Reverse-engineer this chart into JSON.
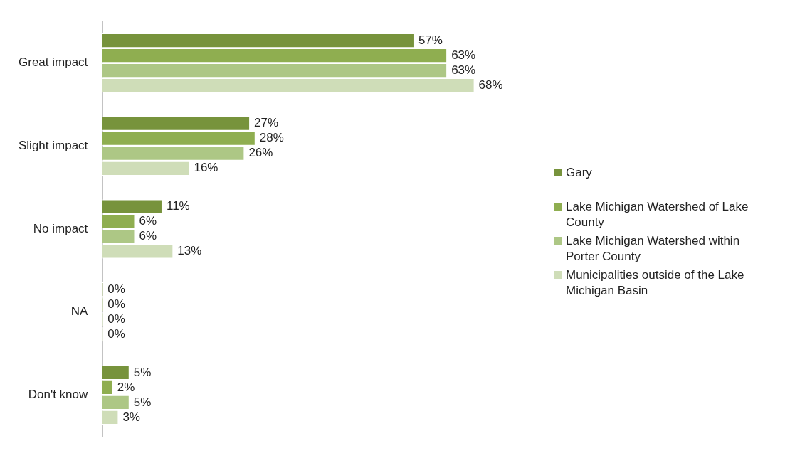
{
  "chart_data": {
    "type": "bar",
    "orientation": "horizontal",
    "categories": [
      "Great impact",
      "Slight impact",
      "No impact",
      "NA",
      "Don't know"
    ],
    "legend": "right",
    "tick_labels": "y",
    "series": [
      {
        "name": "Gary",
        "color": "#77933c",
        "values": [
          57,
          27,
          11,
          0,
          5
        ],
        "value_labels": [
          "57%",
          "27%",
          "11%",
          "0%",
          "5%"
        ]
      },
      {
        "name": "Lake Michigan Watershed of Lake County",
        "color": "#8fae50",
        "values": [
          63,
          28,
          6,
          0,
          2
        ],
        "value_labels": [
          "63%",
          "28%",
          "6%",
          "0%",
          "2%"
        ]
      },
      {
        "name": "Lake Michigan Watershed within Porter County",
        "color": "#adc785",
        "values": [
          63,
          26,
          6,
          0,
          5
        ],
        "value_labels": [
          "63%",
          "26%",
          "6%",
          "0%",
          "5%"
        ]
      },
      {
        "name": "Municipalities outside of the Lake Michigan Basin",
        "color": "#cfddb8",
        "values": [
          68,
          16,
          13,
          0,
          3
        ],
        "value_labels": [
          "68%",
          "16%",
          "13%",
          "0%",
          "3%"
        ]
      }
    ]
  }
}
